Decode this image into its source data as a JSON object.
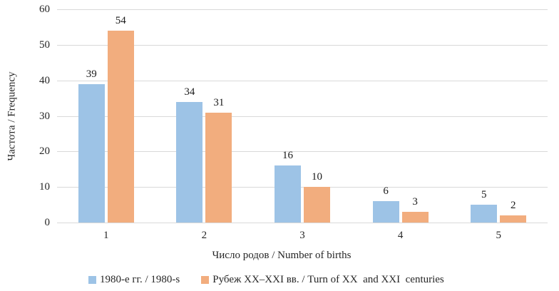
{
  "chart_data": {
    "type": "bar",
    "title": "",
    "categories": [
      "1",
      "2",
      "3",
      "4",
      "5"
    ],
    "series": [
      {
        "name": "1980-е гг. / 1980-s",
        "color": "#9DC3E6",
        "values": [
          39,
          34,
          16,
          6,
          5
        ]
      },
      {
        "name": "Рубеж XX–XXI вв. / Turn of XX  and XXI  centuries",
        "color": "#F2AD7E",
        "values": [
          54,
          31,
          10,
          3,
          2
        ]
      }
    ],
    "xlabel": "Число родов / Number of births",
    "ylabel": "Частота / Frequency",
    "ylim": [
      0,
      60
    ],
    "yticks": [
      0,
      10,
      20,
      30,
      40,
      50,
      60
    ],
    "grid": "horizontal",
    "gridline_color": "#D9D9D9",
    "legend_position": "bottom",
    "data_labels": true,
    "text_color": "#262626",
    "background_color": "#FFFFFF"
  }
}
